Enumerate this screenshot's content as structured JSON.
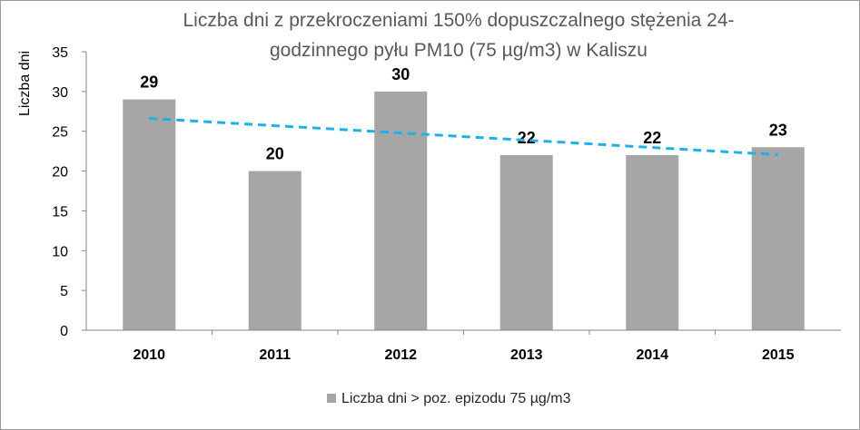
{
  "chart_data": {
    "type": "bar",
    "title_lines": [
      "Liczba dni z przekroczeniami 150% dopuszczalnego stężenia 24-",
      "godzinnego pyłu PM10 (75 µg/m3) w Kaliszu"
    ],
    "categories": [
      "2010",
      "2011",
      "2012",
      "2013",
      "2014",
      "2015"
    ],
    "series": [
      {
        "name": "Liczba dni > poz. epizodu 75 µg/m3",
        "values": [
          29,
          20,
          30,
          22,
          22,
          23
        ]
      }
    ],
    "data_labels": [
      "29",
      "20",
      "30",
      "22",
      "22",
      "23"
    ],
    "trendline": {
      "type": "linear",
      "style": "dashed"
    },
    "xlabel": "",
    "ylabel": "Liczba dni",
    "ylim": [
      0,
      35
    ],
    "yticks": [
      0,
      5,
      10,
      15,
      20,
      25,
      30,
      35
    ],
    "grid": false,
    "legend_position": "bottom",
    "colors": {
      "bar": "#a6a6a6",
      "trend": "#1fb0e8",
      "axis": "#868686"
    }
  }
}
